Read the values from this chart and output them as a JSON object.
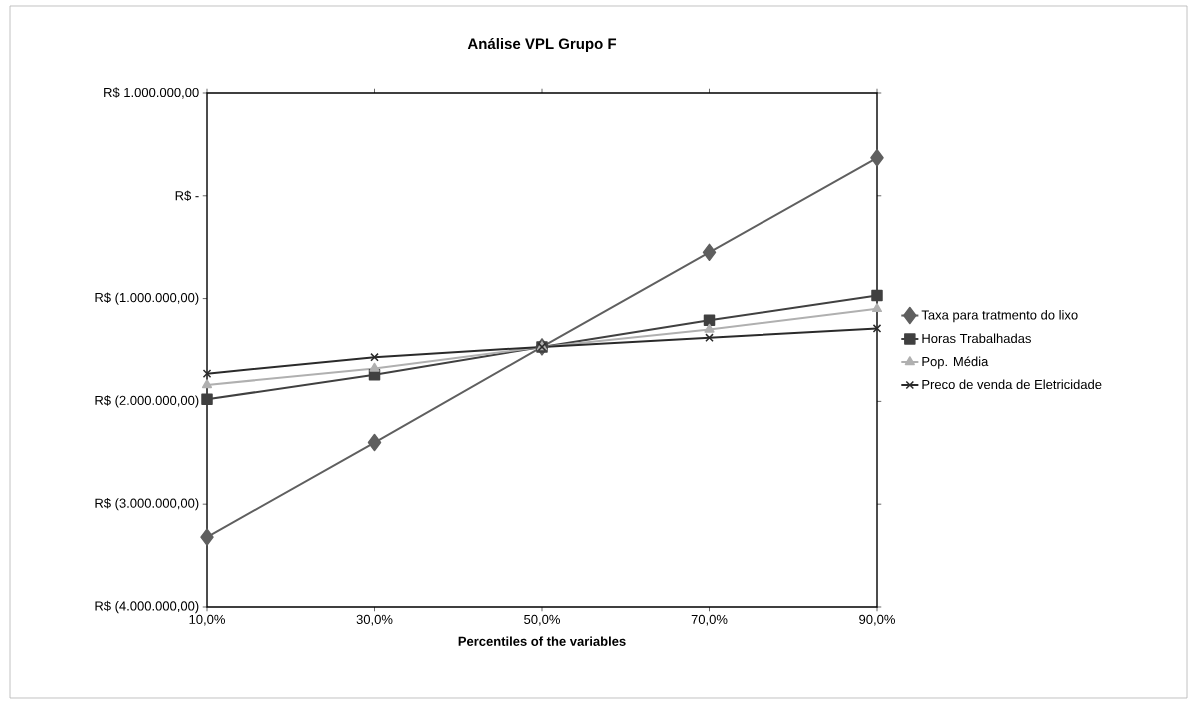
{
  "chart_data": {
    "type": "line",
    "title": "Análise VPL Grupo F",
    "xlabel": "Percentiles of the variables",
    "categories": [
      "10,0%",
      "30,0%",
      "50,0%",
      "70,0%",
      "90,0%"
    ],
    "series": [
      {
        "name": "Taxa para tratmento do lixo",
        "color": "#5f5f5f",
        "marker": "diamond",
        "values": [
          -3320000,
          -2400000,
          -1470000,
          -550000,
          370000
        ]
      },
      {
        "name": "Horas Trabalhadas",
        "color": "#404040",
        "marker": "square",
        "values": [
          -1980000,
          -1740000,
          -1470000,
          -1210000,
          -970000
        ]
      },
      {
        "name": "Pop. Média",
        "color": "#b0b0b0",
        "marker": "triangle",
        "values": [
          -1840000,
          -1680000,
          -1470000,
          -1300000,
          -1100000
        ]
      },
      {
        "name": "Preco de venda de Eletricidade",
        "color": "#2a2a2a",
        "marker": "cross",
        "values": [
          -1730000,
          -1570000,
          -1470000,
          -1380000,
          -1290000
        ]
      }
    ],
    "ylim": [
      -4000000,
      1000000
    ],
    "yticks": [
      {
        "value": -4000000,
        "label": "R$ (4.000.000,00)"
      },
      {
        "value": -3000000,
        "label": "R$ (3.000.000,00)"
      },
      {
        "value": -2000000,
        "label": "R$ (2.000.000,00)"
      },
      {
        "value": -1000000,
        "label": "R$ (1.000.000,00)"
      },
      {
        "value": 0,
        "label": "R$ -"
      },
      {
        "value": 1000000,
        "label": "R$ 1.000.000,00"
      }
    ],
    "legend": "right",
    "grid": false,
    "line_style": "solid"
  }
}
